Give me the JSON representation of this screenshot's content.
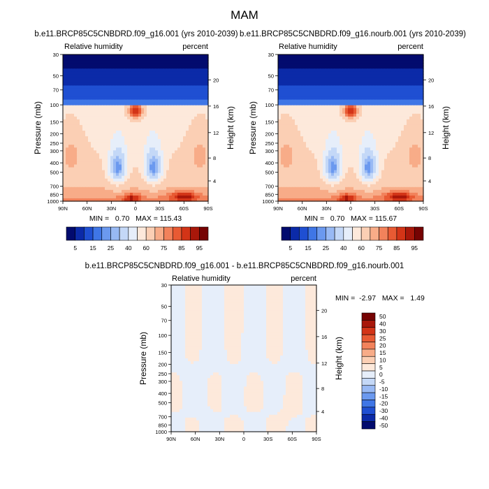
{
  "page_title": "MAM",
  "chart_data": [
    {
      "type": "heatmap",
      "id": "top-left",
      "title": "b.e11.BRCP85C5CNBDRD.f09_g16.001 (yrs 2010-2039)",
      "variable": "Relative humidity",
      "units": "percent",
      "xlabel": "",
      "ylabel": "Pressure (mb)",
      "ylabel_right": "Height (km)",
      "x_ticks": [
        "90N",
        "60N",
        "30N",
        "0",
        "30S",
        "60S",
        "90S"
      ],
      "y_ticks": [
        30,
        50,
        70,
        100,
        150,
        200,
        250,
        300,
        400,
        500,
        700,
        850,
        1000
      ],
      "height_ticks": [
        4,
        8,
        12,
        16,
        20
      ],
      "stats": "MIN =   0.70   MAX = 115.43",
      "min": 0.7,
      "max": 115.43,
      "field": "full"
    },
    {
      "type": "heatmap",
      "id": "top-right",
      "title": "b.e11.BRCP85C5CNBDRD.f09_g16.nourb.001 (yrs 2010-2039)",
      "variable": "Relative humidity",
      "units": "percent",
      "xlabel": "",
      "ylabel": "Pressure (mb)",
      "ylabel_right": "Height (km)",
      "x_ticks": [
        "90N",
        "60N",
        "30N",
        "0",
        "30S",
        "60S",
        "90S"
      ],
      "y_ticks": [
        30,
        50,
        70,
        100,
        150,
        200,
        250,
        300,
        400,
        500,
        700,
        850,
        1000
      ],
      "height_ticks": [
        4,
        8,
        12,
        16,
        20
      ],
      "stats": "MIN =   0.70   MAX = 115.67",
      "min": 0.7,
      "max": 115.67,
      "field": "full"
    },
    {
      "type": "heatmap",
      "id": "difference",
      "title": "b.e11.BRCP85C5CNBDRD.f09_g16.001 - b.e11.BRCP85C5CNBDRD.f09_g16.nourb.001",
      "variable": "Relative humidity",
      "units": "percent",
      "xlabel": "",
      "ylabel": "Pressure (mb)",
      "ylabel_right": "Height (km)",
      "x_ticks": [
        "90N",
        "60N",
        "30N",
        "0",
        "30S",
        "60S",
        "90S"
      ],
      "y_ticks": [
        30,
        50,
        70,
        100,
        150,
        200,
        250,
        300,
        400,
        500,
        700,
        850,
        1000
      ],
      "height_ticks": [
        4,
        8,
        12,
        16,
        20
      ],
      "stats": "MIN =  -2.97   MAX =   1.49",
      "min": -2.97,
      "max": 1.49,
      "field": "diff"
    }
  ],
  "colorbars": {
    "full": {
      "labels": [
        "5",
        "15",
        "25",
        "40",
        "60",
        "75",
        "85",
        "95"
      ],
      "colors": [
        "#020b6e",
        "#0b2aa8",
        "#1f4fd2",
        "#3f76e6",
        "#6b99ef",
        "#98b9f4",
        "#c4d8f7",
        "#e6eefa",
        "#fde9db",
        "#fbcfb4",
        "#f8ac88",
        "#f2825b",
        "#e85a33",
        "#d33417",
        "#a8170a",
        "#760303"
      ]
    },
    "diff": {
      "labels": [
        "50",
        "40",
        "30",
        "25",
        "20",
        "15",
        "10",
        "5",
        "0",
        "-5",
        "-10",
        "-15",
        "-20",
        "-30",
        "-40",
        "-50"
      ],
      "colors": [
        "#760303",
        "#a8170a",
        "#d33417",
        "#e85a33",
        "#f2825b",
        "#f8ac88",
        "#fbcfb4",
        "#fde9db",
        "#e6eefa",
        "#c4d8f7",
        "#98b9f4",
        "#6b99ef",
        "#3f76e6",
        "#1f4fd2",
        "#0b2aa8",
        "#020b6e"
      ]
    }
  }
}
